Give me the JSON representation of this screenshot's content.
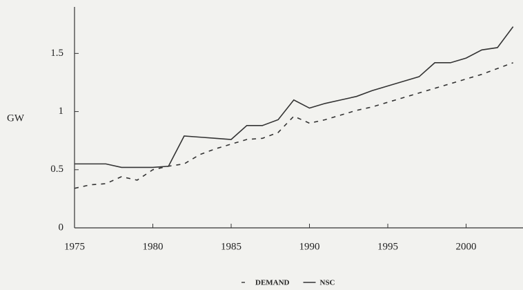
{
  "chart_data": {
    "type": "line",
    "y_label": "GW",
    "x": [
      1975,
      1976,
      1977,
      1978,
      1979,
      1980,
      1981,
      1982,
      1983,
      1984,
      1985,
      1986,
      1987,
      1988,
      1989,
      1990,
      1991,
      1992,
      1993,
      1994,
      1995,
      1996,
      1997,
      1998,
      1999,
      2000,
      2001,
      2002,
      2003
    ],
    "series": [
      {
        "name": "DEMAND",
        "color": "#333333",
        "dashed": true,
        "values": [
          0.34,
          0.37,
          0.38,
          0.44,
          0.41,
          0.5,
          0.53,
          0.55,
          0.63,
          0.68,
          0.72,
          0.76,
          0.77,
          0.82,
          0.96,
          0.9,
          0.93,
          0.97,
          1.01,
          1.04,
          1.08,
          1.12,
          1.16,
          1.2,
          1.24,
          1.28,
          1.32,
          1.37,
          1.42
        ]
      },
      {
        "name": "NSC",
        "color": "#333333",
        "dashed": false,
        "values": [
          0.55,
          0.55,
          0.55,
          0.52,
          0.52,
          0.52,
          0.53,
          0.79,
          0.78,
          0.77,
          0.76,
          0.88,
          0.88,
          0.93,
          1.1,
          1.03,
          1.07,
          1.1,
          1.13,
          1.18,
          1.22,
          1.26,
          1.3,
          1.42,
          1.42,
          1.46,
          1.53,
          1.55,
          1.73
        ]
      }
    ],
    "xlim": [
      1975,
      2003.5
    ],
    "xticks": [
      1975,
      1980,
      1985,
      1990,
      1995,
      2000
    ],
    "ylim": [
      0,
      1.9
    ],
    "yticks": [
      0,
      0.5,
      1,
      1.5
    ],
    "legend": "bottom"
  }
}
